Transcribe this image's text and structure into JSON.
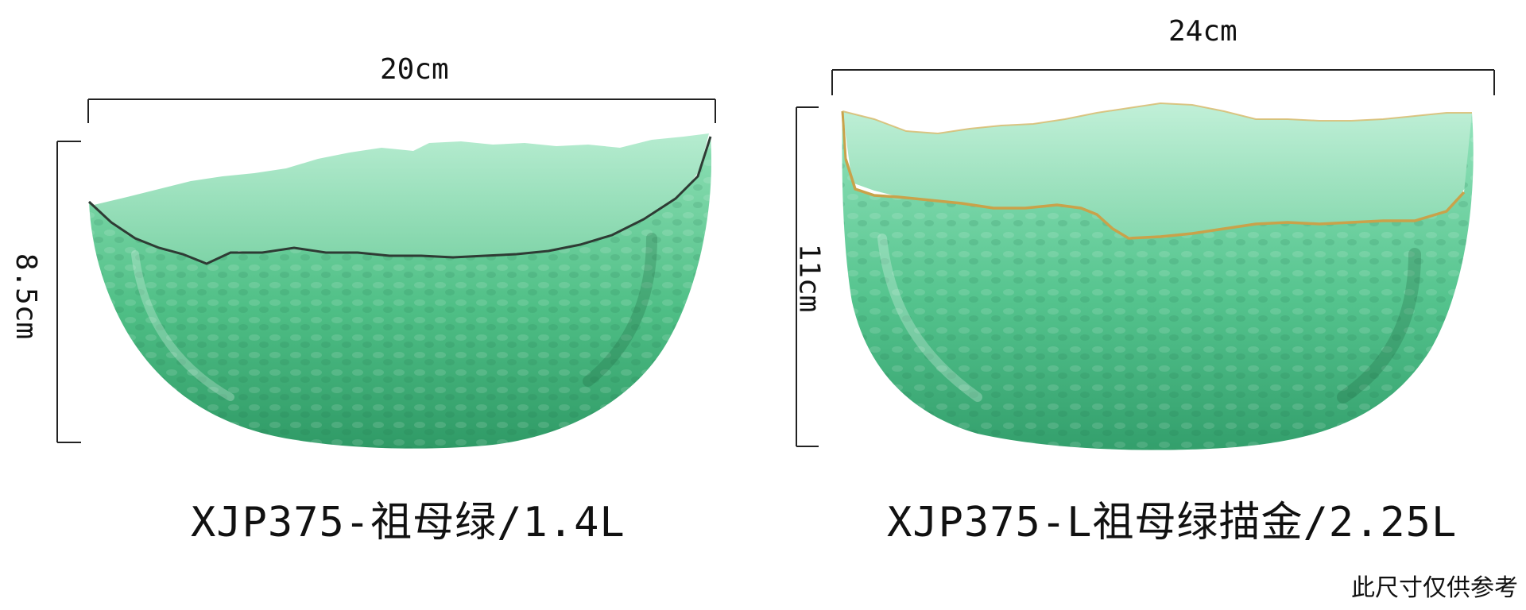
{
  "left_bowl": {
    "width_label": "20cm",
    "height_label": "8.5cm",
    "caption": "XJP375-祖母绿/1.4L",
    "glass_color": "#4fbf86",
    "rim_color": "#2e3b34"
  },
  "right_bowl": {
    "width_label": "24cm",
    "height_label": "11cm",
    "caption": "XJP375-L祖母绿描金/2.25L",
    "glass_color": "#55c48e",
    "rim_color": "#c9a24a"
  },
  "note": "此尺寸仅供参考"
}
